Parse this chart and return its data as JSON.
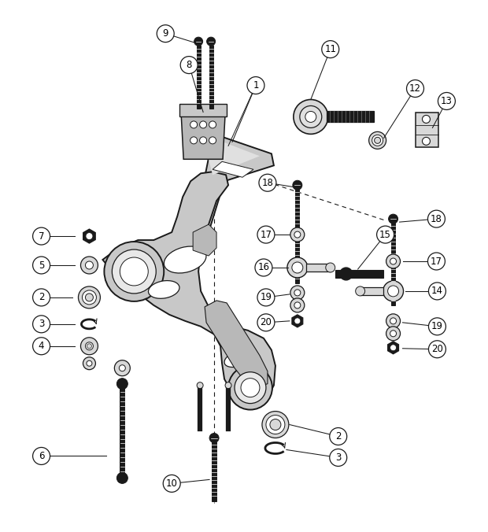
{
  "bg_color": "#ffffff",
  "line_color": "#1a1a1a",
  "part_fill": "#d8d8d8",
  "dark_fill": "#1a1a1a",
  "mid_fill": "#b0b0b0",
  "figsize": [
    6.2,
    6.76
  ],
  "dpi": 100
}
